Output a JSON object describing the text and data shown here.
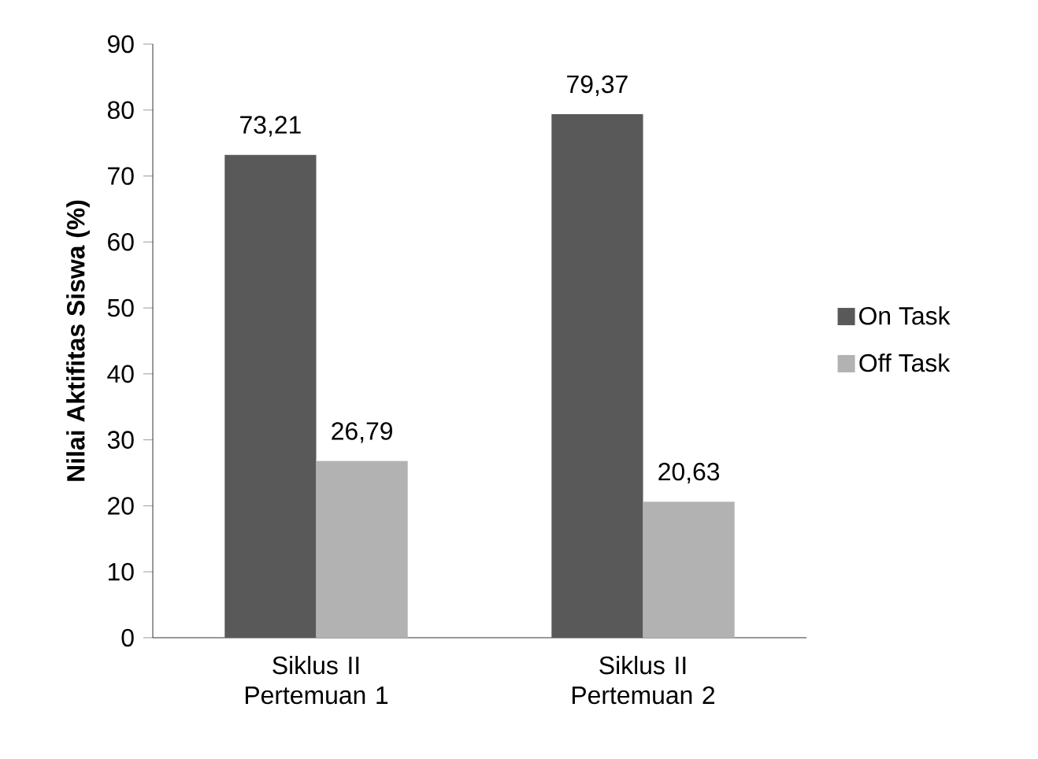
{
  "chart_data": {
    "type": "bar",
    "ylabel": "**Nilai Aktifitas Siswa (%)**",
    "categories": [
      "Siklus II Pertemuan 1",
      "Siklus II Pertemuan 2"
    ],
    "series": [
      {
        "name": "On Task",
        "color": "#595959",
        "values": [
          73.21,
          79.37
        ],
        "value_labels": [
          "73,21",
          "79,37"
        ]
      },
      {
        "name": "Off Task",
        "color": "#b2b2b2",
        "values": [
          26.79,
          20.63
        ],
        "value_labels": [
          "26,79",
          "20,63"
        ]
      }
    ],
    "ylim": [
      0,
      90
    ],
    "yticks": [
      0,
      10,
      20,
      30,
      40,
      50,
      60,
      70,
      80,
      90
    ],
    "grid": false,
    "legend": "right"
  }
}
